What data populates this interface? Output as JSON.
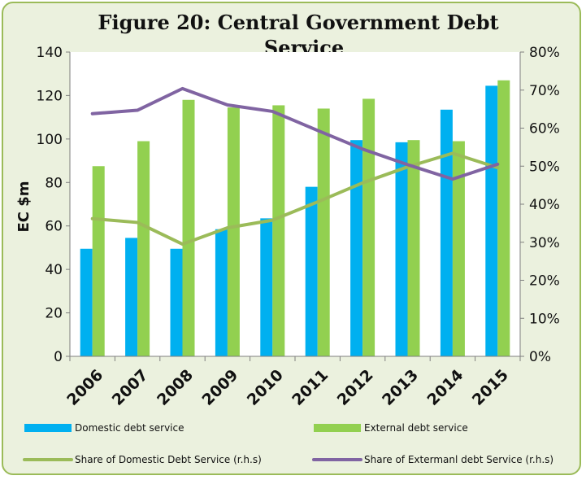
{
  "chart_data": {
    "type": "bar",
    "title": "Figure 20: Central Government Debt Service",
    "title_lines": [
      "Figure 20: Central Government Debt",
      "Service"
    ],
    "ylabel": "EC $m",
    "y2label": "",
    "ylim": [
      0,
      140
    ],
    "yticks": [
      0,
      20,
      40,
      60,
      80,
      100,
      120,
      140
    ],
    "y2lim": [
      0,
      80
    ],
    "y2ticks": [
      "0%",
      "10%",
      "20%",
      "30%",
      "40%",
      "50%",
      "60%",
      "70%",
      "80%"
    ],
    "grid": false,
    "legend_position": "bottom",
    "categories": [
      "2006",
      "2007",
      "2008",
      "2009",
      "2010",
      "2011",
      "2012",
      "2013",
      "2014",
      "2015"
    ],
    "bar_series": [
      {
        "name": "Domestic debt service",
        "color": "#00b0f0",
        "values": [
          49.5,
          54.5,
          49.5,
          58.5,
          63.5,
          78,
          99.5,
          98.5,
          113.5,
          124.5
        ]
      },
      {
        "name": "External debt service",
        "color": "#92d050",
        "values": [
          87.5,
          99,
          118,
          114.5,
          115.5,
          114,
          118.5,
          99.5,
          99,
          127
        ]
      }
    ],
    "line_series": [
      {
        "name": "Share of Domestic Debt Service (r.h.s)",
        "color": "#9bbb59",
        "axis": "right",
        "values": [
          36.2,
          35.2,
          29.5,
          33.8,
          35.8,
          40.6,
          45.6,
          49.8,
          53.4,
          49.6
        ]
      },
      {
        "name": "Share of Extermanl debt Service (r.h.s)",
        "color": "#8064a2",
        "axis": "right",
        "values": [
          63.8,
          64.7,
          70.4,
          66.1,
          64.4,
          59.4,
          54.5,
          50.4,
          46.6,
          50.5
        ]
      }
    ]
  }
}
